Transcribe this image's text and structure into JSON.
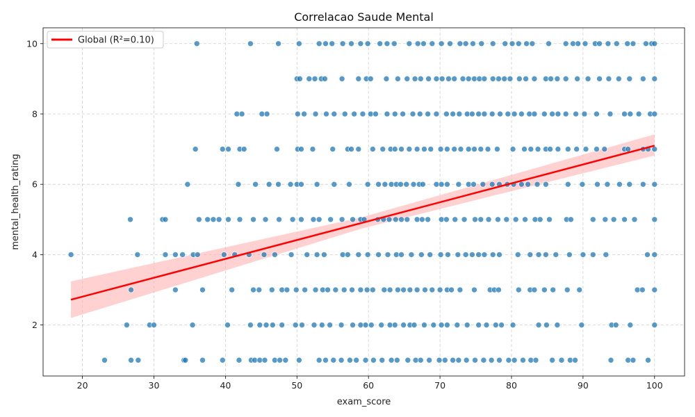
{
  "chart_data": {
    "type": "scatter",
    "title": "Correlacao Saude Mental",
    "xlabel": "exam_score",
    "ylabel": "mental_health_rating",
    "xlim": [
      14.5,
      104.2
    ],
    "ylim": [
      0.55,
      10.45
    ],
    "xticks": [
      20,
      30,
      40,
      50,
      60,
      70,
      80,
      90,
      100
    ],
    "yticks": [
      2,
      4,
      6,
      8,
      10
    ],
    "grid": true,
    "legend_position": "top-left",
    "legend": [
      {
        "label": "Global (R²=0.10)",
        "color": "#ff0000"
      }
    ],
    "point_color": "#1f77b4",
    "regression": {
      "color": "#ff0000",
      "x": [
        18.4,
        100
      ],
      "y": [
        2.72,
        7.1
      ],
      "ci_color": "#ffb3b3",
      "ci_lower": [
        2.2,
        6.82
      ],
      "ci_upper": [
        3.24,
        7.42
      ]
    },
    "series": [
      {
        "y": 1,
        "x": [
          23.1,
          26.8,
          27.8,
          34.2,
          34.4,
          36.8,
          39.6,
          41.9,
          43.6,
          44.1,
          44.8,
          45.5,
          46.9,
          47.6,
          48.4,
          50.3,
          53.1,
          54.0,
          55.1,
          56.2,
          57.4,
          58.3,
          59.6,
          60.7,
          61.9,
          63.2,
          64.0,
          65.5,
          66.6,
          67.3,
          68.5,
          69.9,
          70.7,
          71.8,
          72.6,
          73.7,
          74.9,
          76.1,
          77.2,
          78.3,
          79.6,
          80.4,
          81.6,
          82.7,
          83.4,
          85.7,
          87.0,
          88.2,
          88.9,
          93.9,
          96.3,
          97.0,
          99.1
        ]
      },
      {
        "y": 2,
        "x": [
          26.2,
          29.4,
          30.0,
          35.4,
          40.3,
          43.5,
          44.8,
          45.7,
          46.6,
          47.9,
          49.8,
          50.7,
          52.4,
          53.5,
          54.6,
          56.2,
          57.8,
          58.9,
          59.6,
          60.4,
          61.8,
          63.0,
          63.7,
          64.9,
          65.8,
          66.4,
          67.8,
          69.1,
          70.2,
          71.0,
          72.4,
          73.8,
          75.4,
          76.5,
          77.8,
          78.6,
          80.2,
          83.8,
          84.9,
          86.4,
          89.8,
          94.0,
          94.6,
          96.6,
          100
        ]
      },
      {
        "y": 3,
        "x": [
          26.8,
          33.0,
          36.8,
          40.9,
          43.9,
          44.7,
          46.5,
          47.9,
          48.6,
          49.9,
          51.1,
          52.6,
          53.6,
          54.3,
          55.4,
          56.6,
          57.7,
          58.9,
          59.8,
          60.6,
          62.2,
          63.0,
          64.1,
          64.9,
          65.8,
          66.8,
          67.9,
          68.9,
          70.0,
          71.0,
          71.6,
          72.8,
          74.8,
          77.0,
          77.6,
          78.2,
          81.0,
          82.6,
          83.2,
          84.6,
          85.8,
          87.8,
          89.5,
          97.6,
          98.3,
          100
        ]
      },
      {
        "y": 4,
        "x": [
          18.4,
          27.7,
          31.6,
          33.0,
          34.0,
          35.5,
          36.1,
          39.8,
          41.3,
          43.3,
          45.4,
          46.9,
          49.2,
          51.4,
          52.8,
          53.8,
          56.4,
          57.1,
          58.6,
          59.9,
          61.4,
          62.7,
          63.9,
          64.6,
          66.0,
          67.4,
          68.6,
          70.1,
          71.1,
          72.5,
          73.6,
          74.5,
          75.4,
          76.2,
          77.4,
          78.3,
          80.9,
          82.6,
          83.8,
          84.8,
          86.2,
          88.1,
          90.0,
          91.4,
          93.2,
          99.0,
          100
        ]
      },
      {
        "y": 5,
        "x": [
          26.7,
          31.2,
          31.6,
          36.3,
          37.5,
          38.3,
          39.1,
          40.4,
          42.0,
          43.9,
          45.6,
          47.5,
          49.4,
          50.6,
          52.3,
          53.1,
          54.7,
          56.3,
          57.8,
          58.9,
          59.4,
          61.3,
          62.1,
          62.9,
          63.8,
          64.6,
          65.4,
          66.8,
          67.5,
          68.3,
          70.2,
          70.9,
          72.1,
          73.4,
          74.9,
          75.7,
          76.8,
          78.1,
          79.3,
          80.6,
          81.9,
          83.3,
          84.0,
          85.3,
          87.7,
          88.3,
          91.4,
          93.1,
          94.3,
          95.8,
          97.2,
          100
        ]
      },
      {
        "y": 6,
        "x": [
          34.7,
          41.8,
          44.2,
          46.1,
          47.4,
          49.1,
          50.0,
          50.6,
          52.8,
          55.2,
          57.3,
          59.9,
          61.4,
          62.3,
          63.2,
          63.9,
          64.5,
          65.3,
          66.3,
          67.1,
          67.6,
          69.5,
          70.2,
          71.0,
          72.6,
          74.0,
          74.7,
          76.0,
          77.3,
          78.3,
          79.4,
          80.3,
          81.4,
          82.3,
          83.6,
          84.8,
          87.9,
          89.9,
          92.0,
          93.4,
          95.1,
          96.5,
          98.4,
          100
        ]
      },
      {
        "y": 7,
        "x": [
          35.8,
          39.6,
          40.4,
          42.0,
          42.6,
          47.2,
          50.1,
          50.6,
          52.2,
          55.0,
          57.1,
          57.6,
          58.6,
          60.6,
          62.0,
          63.1,
          63.7,
          64.6,
          65.7,
          66.8,
          67.8,
          68.7,
          70.1,
          71.0,
          72.0,
          72.9,
          74.0,
          74.8,
          75.7,
          76.7,
          78.0,
          80.2,
          81.8,
          82.7,
          83.7,
          84.8,
          85.4,
          86.5,
          87.9,
          89.1,
          90.4,
          91.9,
          93.0,
          95.8,
          96.3,
          98.4,
          99.1,
          100
        ]
      },
      {
        "y": 8,
        "x": [
          41.6,
          42.3,
          45.1,
          45.8,
          50.1,
          51.0,
          52.6,
          54.1,
          55.2,
          56.7,
          58.0,
          59.2,
          60.3,
          61.0,
          62.6,
          63.7,
          64.8,
          66.2,
          67.2,
          68.3,
          69.5,
          70.9,
          71.8,
          72.7,
          73.8,
          74.5,
          75.4,
          76.2,
          77.3,
          78.4,
          79.5,
          80.4,
          81.4,
          82.5,
          83.2,
          84.6,
          85.7,
          86.5,
          87.6,
          89.0,
          90.2,
          91.9,
          93.8,
          95.8,
          96.6,
          97.8,
          99.4,
          100
        ]
      },
      {
        "y": 9,
        "x": [
          50.0,
          50.4,
          51.7,
          52.5,
          53.4,
          53.9,
          56.3,
          58.6,
          59.7,
          60.3,
          62.5,
          64.1,
          65.4,
          66.5,
          67.3,
          68.4,
          69.5,
          70.3,
          71.2,
          72.0,
          73.2,
          74.0,
          74.8,
          75.5,
          76.2,
          77.4,
          78.2,
          79.0,
          79.8,
          81.1,
          82.0,
          83.2,
          84.8,
          85.5,
          86.4,
          87.6,
          89.2,
          90.7,
          92.3,
          93.6,
          95.0,
          96.5,
          98.4,
          100
        ]
      },
      {
        "y": 10,
        "x": [
          36.0,
          43.5,
          47.4,
          50.3,
          53.1,
          54.0,
          54.9,
          56.4,
          57.6,
          58.9,
          59.9,
          61.6,
          62.6,
          63.6,
          65.7,
          66.9,
          67.7,
          68.9,
          70.2,
          71.4,
          72.8,
          73.6,
          74.6,
          75.8,
          77.4,
          79.1,
          80.1,
          81.0,
          82.1,
          82.9,
          85.2,
          87.6,
          88.6,
          89.3,
          90.3,
          91.7,
          92.3,
          93.5,
          94.7,
          96.2,
          97.0,
          98.8,
          99.6,
          100
        ]
      }
    ]
  }
}
